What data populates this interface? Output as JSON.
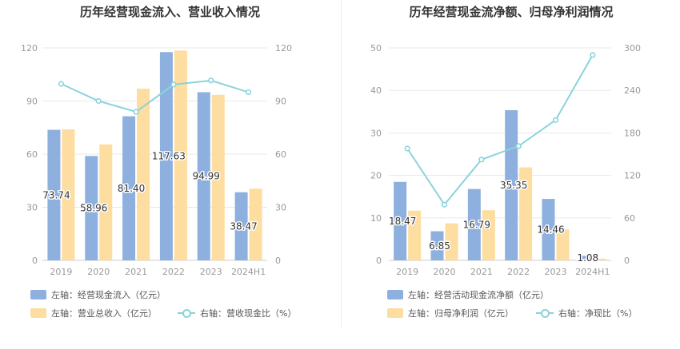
{
  "charts": [
    {
      "title": "历年经营现金流入、营业收入情况",
      "legend": {
        "bar1": "左轴：经营现金流入（亿元）",
        "bar2": "左轴：营业总收入（亿元）",
        "line": "右轴：营收现金比（%）"
      }
    },
    {
      "title": "历年经营现金流净额、归母净利润情况",
      "legend": {
        "bar1": "左轴：经营活动现金流净额（亿元）",
        "bar2": "左轴：归母净利润（亿元）",
        "line": "右轴：净现比（%）"
      }
    }
  ],
  "colors": {
    "bar1": "#8eb0de",
    "bar2": "#fddda0",
    "line": "#8ad3dc",
    "grid": "#e8e8e8",
    "axis_text": "#999999"
  },
  "chart_data": [
    {
      "type": "bar",
      "categories": [
        "2019",
        "2020",
        "2021",
        "2022",
        "2023",
        "2024H1"
      ],
      "series": [
        {
          "name": "经营现金流入",
          "axis": "left",
          "values": [
            73.74,
            58.96,
            81.4,
            117.63,
            94.99,
            38.47
          ],
          "value_labels": [
            "73.74",
            "58.96",
            "81.40",
            "117.63",
            "94.99",
            "38.47"
          ]
        },
        {
          "name": "营业总收入",
          "axis": "left",
          "values": [
            74.0,
            65.5,
            97.0,
            118.5,
            93.5,
            40.5
          ]
        },
        {
          "name": "营收现金比",
          "axis": "right",
          "type": "line",
          "values": [
            99.7,
            90.0,
            83.9,
            99.3,
            101.6,
            95.0
          ]
        }
      ],
      "left_axis": {
        "min": 0,
        "max": 120,
        "ticks": [
          0,
          30,
          60,
          90,
          120
        ]
      },
      "right_axis": {
        "min": 0,
        "max": 120,
        "ticks": [
          0,
          30,
          60,
          90,
          120
        ]
      },
      "grid": true
    },
    {
      "type": "bar",
      "categories": [
        "2019",
        "2020",
        "2021",
        "2022",
        "2023",
        "2024H1"
      ],
      "series": [
        {
          "name": "经营活动现金流净额",
          "axis": "left",
          "values": [
            18.47,
            6.85,
            16.79,
            35.35,
            14.46,
            1.08
          ],
          "value_labels": [
            "18.47",
            "6.85",
            "16.79",
            "35.35",
            "14.46",
            "1.08"
          ]
        },
        {
          "name": "归母净利润",
          "axis": "left",
          "values": [
            11.7,
            8.7,
            11.8,
            21.9,
            7.3,
            0.4
          ]
        },
        {
          "name": "净现比",
          "axis": "right",
          "type": "line",
          "values": [
            157.9,
            78.7,
            142.3,
            161.4,
            198.1,
            290.0
          ]
        }
      ],
      "left_axis": {
        "min": 0,
        "max": 50,
        "ticks": [
          0,
          10,
          20,
          30,
          40,
          50
        ]
      },
      "right_axis": {
        "min": 0,
        "max": 300,
        "ticks": [
          0,
          60,
          120,
          180,
          240,
          300
        ]
      },
      "grid": true
    }
  ]
}
